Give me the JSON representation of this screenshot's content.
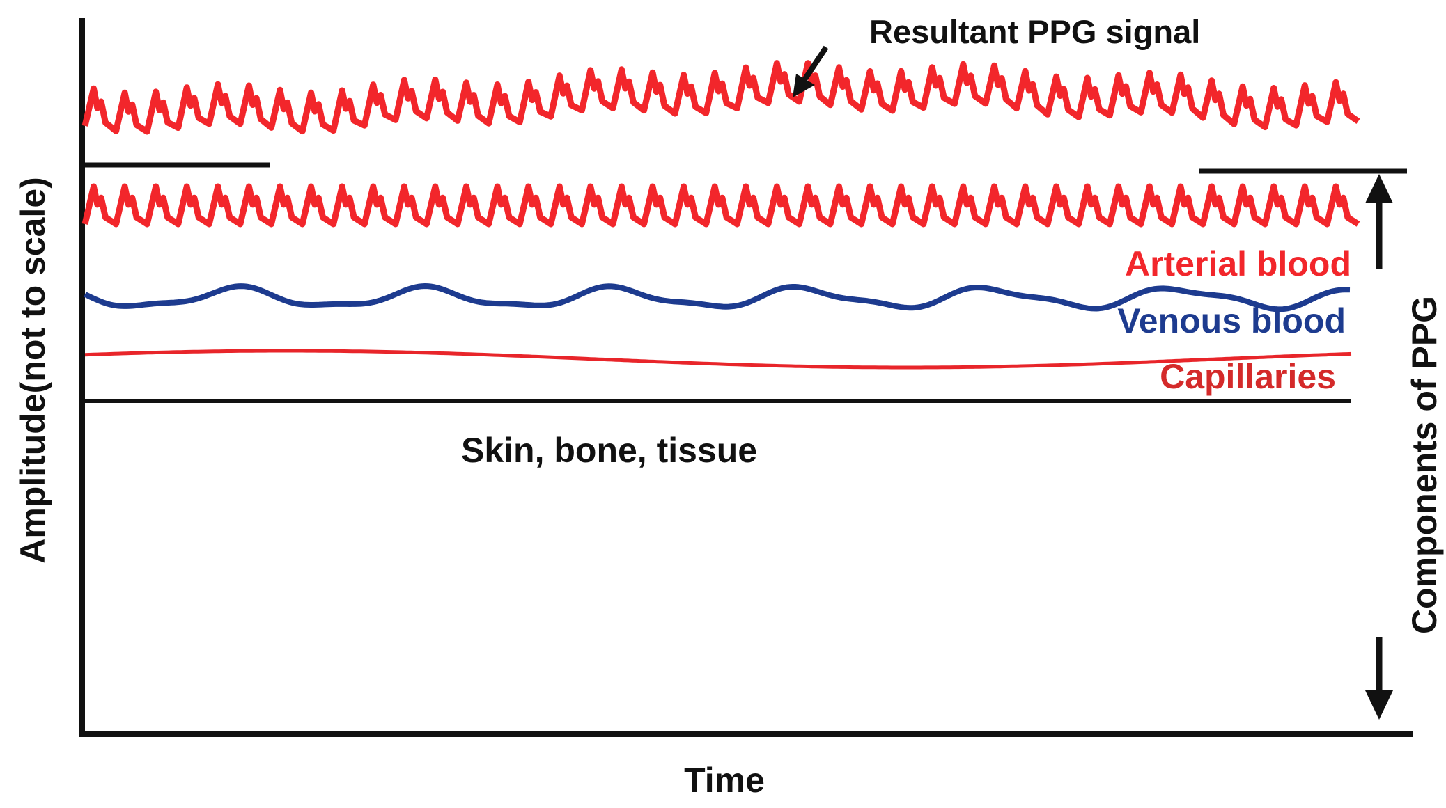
{
  "axis": {
    "y_label": "Amplitude(not to scale)",
    "x_label": "Time"
  },
  "annotations": {
    "resultant": "Resultant PPG signal",
    "components": "Components of PPG"
  },
  "layers": {
    "arterial": "Arterial blood",
    "venous": "Venous blood",
    "capillaries": "Capillaries",
    "tissue": "Skin, bone, tissue"
  },
  "colors": {
    "arterial": "#f2262b",
    "resultant": "#f2262b",
    "venous": "#1d3b8f",
    "capillaries": "#e8252a",
    "axis": "#111111"
  },
  "waveforms": {
    "cycles": 41
  },
  "icons": {
    "resultant_pointer": "arrow-icon",
    "components_up": "arrow-up-icon",
    "components_down": "arrow-down-icon"
  }
}
